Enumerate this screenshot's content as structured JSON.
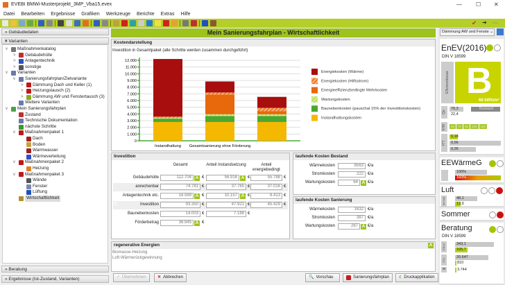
{
  "window": {
    "title": "EVEBI BMWi-Musterprojekt_3MP_Vba15.evex",
    "minimize": "—",
    "maximize": "☐",
    "close": "✕"
  },
  "menu": [
    "Datei",
    "Bearbeiten",
    "Ergebnisse",
    "Grafiken",
    "Werkzeuge",
    "Berichte",
    "Extras",
    "Hilfe"
  ],
  "toolbar_colors": [
    "#e8e8e8",
    "#f0c040",
    "#7aa7d8",
    "#6aa84f",
    "#3060c0",
    "#888",
    "#444",
    "#ddd",
    "#3a6fc0",
    "#e07020",
    "#2c5fc8",
    "#888",
    "#c0a040",
    "#d02020",
    "#30a0a0",
    "#ccc",
    "#2080d0",
    "#f0e040",
    "#d02020",
    "#e8a030",
    "#777",
    "#c03030",
    "#2050c0",
    "#8b5a2b"
  ],
  "left": {
    "section_gebaeude": "Gebäudedaten",
    "section_varianten": "Varianten",
    "section_beratung": "Beratung",
    "section_ergebnisse": "Ergebnisse (Ist-Zustand, Varianten)",
    "tree": [
      {
        "label": "Maßnahmenkatalog",
        "level": 0,
        "arrow": "v",
        "icon": "#777"
      },
      {
        "label": "Gebäudehülle",
        "level": 1,
        "arrow": ">",
        "icon": "#c03030"
      },
      {
        "label": "Anlagentechnik",
        "level": 1,
        "arrow": ">",
        "icon": "#3050c0"
      },
      {
        "label": "sonstige",
        "level": 1,
        "arrow": ">",
        "icon": "#555"
      },
      {
        "label": "Varianten",
        "level": 0,
        "arrow": "v",
        "icon": "#6a7ab0"
      },
      {
        "label": "Sanierungsfahrplan/Zielvariante",
        "level": 1,
        "arrow": "v",
        "icon": "#6a7ab0"
      },
      {
        "label": "Dämmung Dach und Keller (1)",
        "level": 2,
        "arrow": ">",
        "icon": "#c01818"
      },
      {
        "label": "Heizungstausch (2)",
        "level": 2,
        "arrow": ">",
        "icon": "#c01818"
      },
      {
        "label": "Dämmung AW und Fenstertausch (3)",
        "level": 2,
        "arrow": ">",
        "icon": "#8aae1a"
      },
      {
        "label": "Weitere Varianten",
        "level": 1,
        "arrow": "",
        "icon": "#6a7ab0"
      },
      {
        "label": "Mein Sanierungsfahrplan",
        "level": 0,
        "arrow": "v",
        "icon": "#4aa04a"
      },
      {
        "label": "Zustand",
        "level": 1,
        "arrow": "",
        "icon": "#c03030"
      },
      {
        "label": "Technische Dokumentation",
        "level": 1,
        "arrow": "",
        "icon": "#6a7ab0"
      },
      {
        "label": "nächste Schritte",
        "level": 1,
        "arrow": "",
        "icon": "#3a9a2a"
      },
      {
        "label": "Maßnahmenpaket 1",
        "level": 1,
        "arrow": "v",
        "icon": "#c01818"
      },
      {
        "label": "Dach",
        "level": 2,
        "arrow": "",
        "icon": "#a02020"
      },
      {
        "label": "Boden",
        "level": 2,
        "arrow": "",
        "icon": "#c8a040"
      },
      {
        "label": "Warmwasser",
        "level": 2,
        "arrow": "",
        "icon": "#a02020"
      },
      {
        "label": "Wärmeverteilung",
        "level": 2,
        "arrow": "",
        "icon": "#3050c0"
      },
      {
        "label": "Maßnahmenpaket 2",
        "level": 1,
        "arrow": "v",
        "icon": "#c01818"
      },
      {
        "label": "Heizung",
        "level": 2,
        "arrow": "",
        "icon": "#e08020"
      },
      {
        "label": "Maßnahmenpaket 3",
        "level": 1,
        "arrow": "v",
        "icon": "#c01818"
      },
      {
        "label": "Wände",
        "level": 2,
        "arrow": "",
        "icon": "#555"
      },
      {
        "label": "Fenster",
        "level": 2,
        "arrow": "",
        "icon": "#7a8ab0"
      },
      {
        "label": "Lüftung",
        "level": 2,
        "arrow": "",
        "icon": "#2050c0"
      },
      {
        "label": "Wirtschaftlichkeit",
        "level": 1,
        "arrow": "",
        "icon": "#b09030",
        "selected": true
      }
    ]
  },
  "main": {
    "title": "Mein Sanierungsfahrplan - Wirtschaftlichkeit",
    "kosten_title": "Kostendarstellung",
    "chart_subtitle": "Investition in Gesamtpaket (alle Schritte werden zusammen durchgeführt)",
    "investition": {
      "title": "Investition",
      "cols": [
        "Gesamt",
        "Anteil Instandsetzung",
        "Anteil energiebedingt"
      ],
      "rows": [
        {
          "label": "Gebäudehülle",
          "values": [
            "112.704",
            "56.916",
            "55.788"
          ],
          "a": [
            true,
            true,
            false
          ]
        },
        {
          "label": "anrechenbar",
          "values": [
            "74.781",
            "37.765",
            "37.016"
          ],
          "a": [
            false,
            false,
            false
          ]
        },
        {
          "label": "Anlagentechnik etc.",
          "values": [
            "18.569",
            "10.157",
            "8.413"
          ],
          "a": [
            true,
            true,
            false
          ],
          "sign": "+"
        },
        {
          "label": "Investition",
          "values": [
            "93.350",
            "47.921",
            "45.429"
          ],
          "a": [
            false,
            false,
            false
          ],
          "sign": "="
        },
        {
          "label": "Baunebenkosten",
          "values": [
            "14.003",
            "7.188",
            null
          ],
          "a": [
            false,
            false,
            false
          ]
        },
        {
          "label": "Förderbetrag",
          "values": [
            "36.945",
            null,
            null
          ],
          "a": [
            true,
            false,
            false
          ]
        }
      ],
      "currency": "€"
    },
    "bestand": {
      "title": "laufende Kosten Bestand",
      "rows": [
        {
          "label": "Wärmekosten",
          "value": "8563"
        },
        {
          "label": "Stromkosten",
          "value": "222"
        },
        {
          "label": "Wartungskosten",
          "value": "64",
          "a": true
        }
      ],
      "unit": "€/a"
    },
    "sanierung": {
      "title": "laufende Kosten Sanierung",
      "rows": [
        {
          "label": "Wärmekosten",
          "value": "1632"
        },
        {
          "label": "Stromkosten",
          "value": "387"
        },
        {
          "label": "Wartungskosten",
          "value": "267",
          "a": true
        }
      ],
      "unit": "€/a"
    },
    "regenerativ": {
      "title": "regenerative Energien",
      "items": [
        "Biomasse-Heizung",
        "Luft-Wärmerückgewinnung"
      ]
    },
    "a_badge": "A",
    "buttons": {
      "uebernehmen": "Übernehmen",
      "abbrechen": "Abbrechen",
      "vorschau": "Vorschau",
      "sanierungsfahrplan": "Sanierungsfahrplan",
      "druck": "Druckapplikation"
    }
  },
  "chart_data": {
    "type": "bar",
    "stacked": true,
    "subtitle": "Investition in Gesamtpaket (alle Schritte werden zusammen durchgeführt)",
    "categories": [
      "Instandhaltung",
      "Gesamtsanierung ohne Förderung",
      ""
    ],
    "ylim": [
      0,
      12000
    ],
    "yticks": [
      "0",
      "1.000",
      "2.000",
      "3.000",
      "4.000",
      "5.000",
      "6.000",
      "7.000",
      "8.000",
      "9.000",
      "10.000",
      "11.000",
      "12.000"
    ],
    "grid": true,
    "legend": "right",
    "series": [
      {
        "name": "Instandhaltungskosten",
        "color": "#f5b800",
        "values": [
          2800,
          2800,
          2800
        ]
      },
      {
        "name": "Baunebenkosten (pauschal 15% der Investitionskosten)",
        "color": "#4aa832",
        "values": [
          500,
          900,
          900
        ]
      },
      {
        "name": "Wartungskosten",
        "color": "#b8e050",
        "hatched": true,
        "values": [
          100,
          250,
          250
        ]
      },
      {
        "name": "Energieeffizienzbedingte Mehrkosten",
        "color": "#e8680c",
        "values": [
          0,
          2950,
          450
        ]
      },
      {
        "name": "Energiekosten (Hilfsstrom)",
        "color": "#f07820",
        "hatched": true,
        "values": [
          200,
          300,
          500
        ]
      },
      {
        "name": "Energiekosten (Wärme)",
        "color": "#a80e0e",
        "values": [
          8600,
          1650,
          1650
        ]
      }
    ],
    "legend_order": [
      5,
      4,
      3,
      2,
      1,
      0
    ]
  },
  "right": {
    "dropdown": "Dämmung AW und Fenste",
    "enev": {
      "title": "EnEV(2016)",
      "sub": "DIN V 18599",
      "side": "Effizienzklasse",
      "class": "B",
      "value": "68 kWh/m²",
      "class_color": "#c8d400",
      "qp_label": "Qp",
      "qp": [
        "70,3",
        "22,4"
      ],
      "bestand": "Bestand",
      "kfw_label": "KfW",
      "kfw": [
        "55",
        "70",
        "85",
        "100",
        "115"
      ],
      "ht_label": "H'T",
      "ht": [
        "0,18",
        "0,56",
        "0,26"
      ],
      "lights": [
        "green",
        "off"
      ]
    },
    "eew": {
      "title": "EEWärmeG",
      "values": [
        "100%",
        "160%"
      ],
      "lights": [
        "green",
        "off"
      ]
    },
    "luft": {
      "title": "Luft",
      "side": "Inf min",
      "values": [
        "48,1",
        "13,9"
      ],
      "lights": [
        "off",
        "off",
        "red"
      ]
    },
    "sommer": {
      "title": "Sommer",
      "lights": [
        "off",
        "red"
      ]
    },
    "beratung": {
      "title": "Beratung",
      "sub": "DIN V 18599",
      "end_label": "EEnd",
      "end": [
        "343,1",
        "105,7"
      ],
      "co2_label": "CO₂",
      "co2": [
        "20.647",
        "810"
      ],
      "w_label": "w",
      "w": "3.744",
      "lights": [
        "green",
        "off"
      ]
    }
  }
}
